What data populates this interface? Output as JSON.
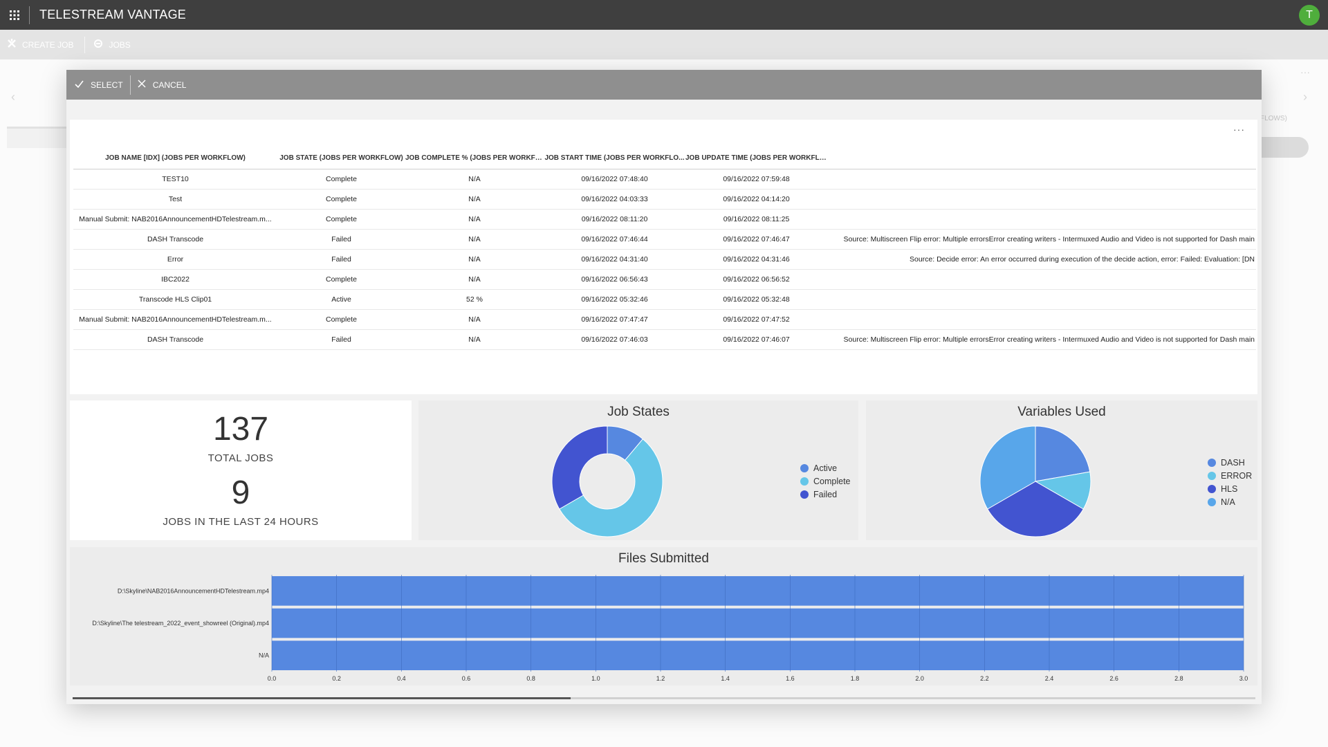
{
  "app": {
    "title": "TELESTREAM VANTAGE",
    "avatar_initial": "T"
  },
  "background_toolbar": {
    "create_job_label": "CREATE JOB",
    "jobs_label": "JOBS",
    "flows_fragment": "FLOWS)"
  },
  "modal": {
    "select_label": "SELECT",
    "cancel_label": "CANCEL"
  },
  "table": {
    "headers": [
      "JOB NAME [IDX] (JOBS PER WORKFLOW)",
      "JOB STATE (JOBS PER WORKFLOW)",
      "JOB COMPLETE % (JOBS PER WORKFLOW)",
      "JOB START TIME (JOBS PER WORKFLO...",
      "JOB UPDATE TIME (JOBS PER WORKFLO...",
      ""
    ],
    "rows": [
      [
        "TEST10",
        "Complete",
        "N/A",
        "09/16/2022 07:48:40",
        "09/16/2022 07:59:48",
        ""
      ],
      [
        "Test",
        "Complete",
        "N/A",
        "09/16/2022 04:03:33",
        "09/16/2022 04:14:20",
        ""
      ],
      [
        "Manual Submit: NAB2016AnnouncementHDTelestream.m...",
        "Complete",
        "N/A",
        "09/16/2022 08:11:20",
        "09/16/2022 08:11:25",
        ""
      ],
      [
        "DASH Transcode",
        "Failed",
        "N/A",
        "09/16/2022 07:46:44",
        "09/16/2022 07:46:47",
        "Source: Multiscreen Flip error: Multiple errorsError creating writers - Intermuxed Audio and Video is not supported for Dash main"
      ],
      [
        "Error",
        "Failed",
        "N/A",
        "09/16/2022 04:31:40",
        "09/16/2022 04:31:46",
        "Source: Decide error: An error occurred during execution of the decide action, error: Failed: Evaluation: [DN"
      ],
      [
        "IBC2022",
        "Complete",
        "N/A",
        "09/16/2022 06:56:43",
        "09/16/2022 06:56:52",
        ""
      ],
      [
        "Transcode HLS Clip01",
        "Active",
        "52 %",
        "09/16/2022 05:32:46",
        "09/16/2022 05:32:48",
        ""
      ],
      [
        "Manual Submit: NAB2016AnnouncementHDTelestream.m...",
        "Complete",
        "N/A",
        "09/16/2022 07:47:47",
        "09/16/2022 07:47:52",
        ""
      ],
      [
        "DASH Transcode",
        "Failed",
        "N/A",
        "09/16/2022 07:46:03",
        "09/16/2022 07:46:07",
        "Source: Multiscreen Flip error: Multiple errorsError creating writers - Intermuxed Audio and Video is not supported for Dash main"
      ]
    ]
  },
  "kpi": {
    "total_jobs": "137",
    "total_jobs_label": "TOTAL JOBS",
    "recent_jobs": "9",
    "recent_jobs_label": "JOBS IN THE LAST 24 HOURS"
  },
  "chart_data": [
    {
      "type": "pie",
      "variant": "donut",
      "title": "Job States",
      "labels": [
        "Active",
        "Complete",
        "Failed"
      ],
      "values": [
        1,
        5,
        3
      ],
      "colors": [
        "#5688e0",
        "#65c6e8",
        "#4254d0"
      ],
      "legend": "right"
    },
    {
      "type": "pie",
      "title": "Variables Used",
      "labels": [
        "DASH",
        "ERROR",
        "HLS",
        "N/A"
      ],
      "values": [
        2,
        1,
        3,
        3
      ],
      "colors": [
        "#5688e0",
        "#65c6e8",
        "#4254d0",
        "#58a6ea"
      ],
      "legend": "right"
    },
    {
      "type": "bar",
      "orientation": "horizontal",
      "title": "Files Submitted",
      "categories": [
        "D:\\Skyline\\NAB2016AnnouncementHDTelestream.mp4",
        "D:\\Skyline\\The telestream_2022_event_showreel (Original).mp4",
        "N/A"
      ],
      "values": [
        3,
        3,
        3
      ],
      "xlim": [
        0,
        3
      ],
      "xticks": [
        "0.0",
        "0.2",
        "0.4",
        "0.6",
        "0.8",
        "1.0",
        "1.2",
        "1.4",
        "1.6",
        "1.8",
        "2.0",
        "2.2",
        "2.4",
        "2.6",
        "2.8",
        "3.0"
      ],
      "bar_color": "#5688e0",
      "grid": true
    }
  ]
}
